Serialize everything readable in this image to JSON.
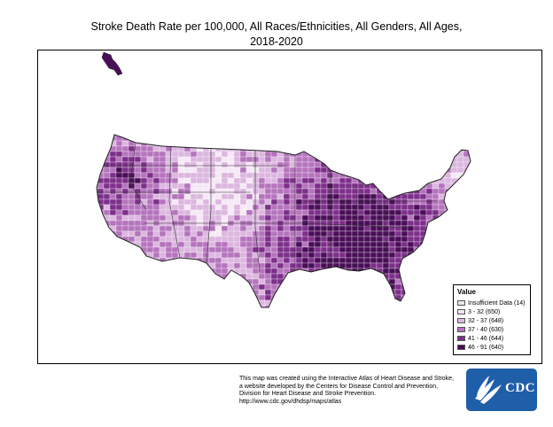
{
  "title": {
    "line1": "Stroke Death Rate per 100,000, All Races/Ethnicities, All Genders, All Ages,",
    "line2": "2018-2020"
  },
  "legend": {
    "title": "Value",
    "items": [
      {
        "label": "Insufficient Data (14)",
        "color": "#ebe3ee"
      },
      {
        "label": "3 - 32 (650)",
        "color": "#f6e8f6"
      },
      {
        "label": "32 - 37 (648)",
        "color": "#dcb7df"
      },
      {
        "label": "37 - 40 (630)",
        "color": "#b574bd"
      },
      {
        "label": "41 - 46 (644)",
        "color": "#7d2f8a"
      },
      {
        "label": "46 - 91 (640)",
        "color": "#4a0e58"
      }
    ]
  },
  "credit": {
    "line1": "This map was created using the Interactive Atlas of Heart Disease and Stroke,",
    "line2": "a website developed by the Centers for Disease Control and Prevention,",
    "line3": "Division for Heart Disease and Stroke Prevention.",
    "line4": "http://www.cdc.gov/dhdsp/maps/atlas"
  },
  "logo": {
    "text": "CDC",
    "color": "#1f5ea8"
  }
}
